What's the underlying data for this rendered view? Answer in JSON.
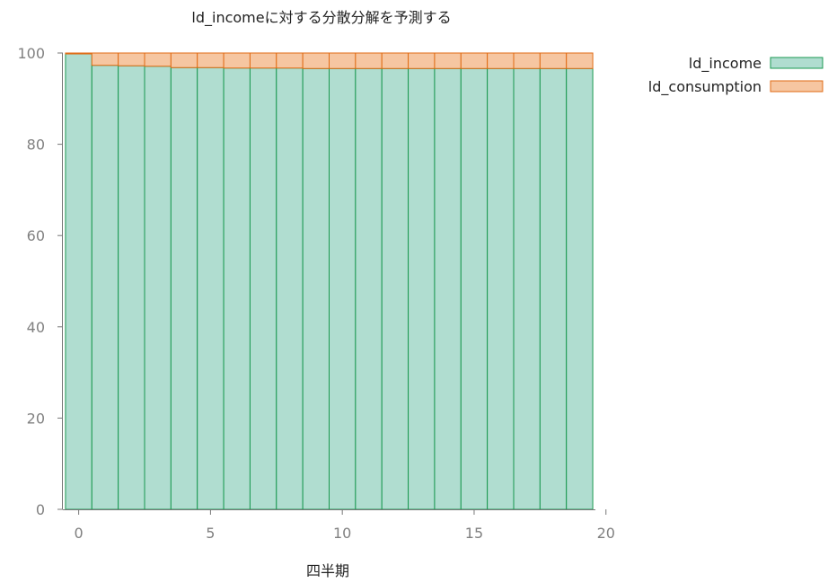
{
  "chart_data": {
    "type": "bar",
    "stacked": true,
    "title": "ld_incomeに対する分散分解を予測する",
    "xlabel": "四半期",
    "ylabel": "",
    "x": [
      0,
      1,
      2,
      3,
      4,
      5,
      6,
      7,
      8,
      9,
      10,
      11,
      12,
      13,
      14,
      15,
      16,
      17,
      18,
      19
    ],
    "xlim": [
      -0.6,
      19.6
    ],
    "ylim": [
      0,
      100
    ],
    "xticks": [
      0,
      5,
      10,
      15,
      20
    ],
    "yticks": [
      0,
      20,
      40,
      60,
      80,
      100
    ],
    "grid": false,
    "legend_position": "top-right",
    "series": [
      {
        "name": "ld_income",
        "color": "#b0ddd0",
        "edge": "#1a9850",
        "values": [
          99.8,
          97.3,
          97.2,
          97.1,
          96.8,
          96.8,
          96.7,
          96.7,
          96.7,
          96.6,
          96.6,
          96.6,
          96.6,
          96.6,
          96.6,
          96.6,
          96.6,
          96.6,
          96.6,
          96.6
        ]
      },
      {
        "name": "ld_consumption",
        "color": "#f6c6a1",
        "edge": "#e06b14",
        "values": [
          0.2,
          2.7,
          2.8,
          2.9,
          3.2,
          3.2,
          3.3,
          3.3,
          3.3,
          3.4,
          3.4,
          3.4,
          3.4,
          3.4,
          3.4,
          3.4,
          3.4,
          3.4,
          3.4,
          3.4
        ]
      }
    ]
  }
}
